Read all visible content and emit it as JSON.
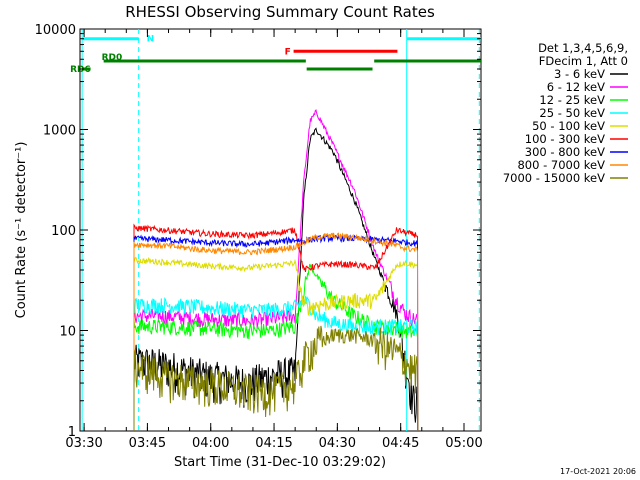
{
  "chart_data": {
    "type": "line",
    "title": "RHESSI Observing Summary Count Rates",
    "xlabel": "Start Time (31-Dec-10 03:29:02)",
    "ylabel": "Count Rate (s⁻¹ detector⁻¹)",
    "ylog": true,
    "ylim": [
      1,
      10000
    ],
    "xlim_minutes": [
      0,
      95
    ],
    "y_ticks": [
      {
        "value": 10000,
        "label": "10000"
      },
      {
        "value": 1000,
        "label": "1000"
      },
      {
        "value": 100,
        "label": "100"
      },
      {
        "value": 10,
        "label": "10"
      },
      {
        "value": 1,
        "label": "1"
      }
    ],
    "x_ticks": [
      {
        "t": 0.97,
        "label": "03:30"
      },
      {
        "t": 15.97,
        "label": "03:45"
      },
      {
        "t": 30.97,
        "label": "04:00"
      },
      {
        "t": 45.97,
        "label": "04:15"
      },
      {
        "t": 60.97,
        "label": "04:30"
      },
      {
        "t": 75.97,
        "label": "04:45"
      },
      {
        "t": 90.97,
        "label": "05:00"
      }
    ],
    "legend": {
      "header": [
        "Det 1,3,4,5,6,9,",
        "FDecim 1, Att 0"
      ],
      "placement": "right"
    },
    "data_gap": {
      "start": 12.8,
      "end": 80.0
    },
    "series": [
      {
        "name": "3 - 6 keV",
        "color": "#000000",
        "t": [
          13,
          20,
          30,
          40,
          45,
          51,
          53,
          54.5,
          56,
          60,
          65,
          70,
          75,
          77,
          79
        ],
        "values": [
          5,
          4.5,
          3.5,
          3,
          3.5,
          3.8,
          200,
          800,
          1000,
          600,
          200,
          50,
          15,
          5,
          2
        ]
      },
      {
        "name": "6 - 12 keV",
        "color": "#ff00ff",
        "t": [
          13,
          20,
          30,
          40,
          45,
          51,
          53,
          54.5,
          56,
          60,
          65,
          70,
          75,
          77,
          79
        ],
        "values": [
          14,
          14,
          13,
          12.5,
          13,
          14,
          300,
          1200,
          1500,
          700,
          250,
          60,
          20,
          15,
          13
        ]
      },
      {
        "name": "12 - 25 keV",
        "color": "#00ff00",
        "t": [
          13,
          20,
          30,
          40,
          45,
          51,
          53,
          54.5,
          56,
          60,
          65,
          70,
          75,
          77,
          79
        ],
        "values": [
          11,
          11,
          10.5,
          10,
          10,
          11,
          25,
          45,
          35,
          20,
          14,
          11,
          10.5,
          10,
          9.5
        ]
      },
      {
        "name": "25 - 50 keV",
        "color": "#00ffff",
        "t": [
          13,
          20,
          30,
          40,
          45,
          51,
          53,
          54.5,
          56,
          60,
          65,
          70,
          75,
          77,
          79
        ],
        "values": [
          18,
          18,
          17,
          16,
          16,
          17,
          20,
          18,
          14,
          12,
          11,
          11,
          11,
          11,
          11
        ]
      },
      {
        "name": "50 - 100 keV",
        "color": "#dddd00",
        "t": [
          13,
          20,
          30,
          40,
          45,
          51,
          53,
          54.5,
          56,
          60,
          65,
          70,
          75,
          77,
          79
        ],
        "values": [
          50,
          48,
          44,
          42,
          44,
          47,
          18,
          17,
          18,
          19,
          20,
          20,
          45,
          47,
          45
        ]
      },
      {
        "name": "100 - 300 keV",
        "color": "#ff0000",
        "t": [
          13,
          20,
          30,
          40,
          45,
          51,
          53,
          54.5,
          56,
          60,
          65,
          70,
          75,
          77,
          79
        ],
        "values": [
          105,
          100,
          92,
          88,
          92,
          100,
          40,
          42,
          44,
          46,
          45,
          42,
          100,
          95,
          90
        ]
      },
      {
        "name": "300 - 800 keV",
        "color": "#0000ff",
        "t": [
          13,
          20,
          30,
          40,
          45,
          51,
          53,
          54.5,
          56,
          60,
          65,
          70,
          75,
          77,
          79
        ],
        "values": [
          82,
          80,
          75,
          72,
          75,
          80,
          78,
          80,
          82,
          83,
          82,
          80,
          78,
          76,
          74
        ]
      },
      {
        "name": "800 - 7000 keV",
        "color": "#ff8800",
        "t": [
          13,
          20,
          30,
          40,
          45,
          51,
          53,
          54.5,
          56,
          60,
          65,
          70,
          75,
          77,
          79
        ],
        "values": [
          72,
          70,
          63,
          60,
          63,
          68,
          75,
          80,
          85,
          88,
          85,
          78,
          70,
          66,
          64
        ]
      },
      {
        "name": "7000 - 15000 keV",
        "color": "#808000",
        "t": [
          13,
          20,
          30,
          40,
          45,
          51,
          53,
          54.5,
          56,
          60,
          65,
          70,
          75,
          77,
          79
        ],
        "values": [
          4.5,
          3.5,
          3,
          2.5,
          2.5,
          3,
          5,
          6.5,
          7.5,
          9,
          9,
          8,
          6,
          5,
          4
        ]
      }
    ],
    "flags": [
      {
        "label": "N",
        "color": "#00ffff",
        "y_level": 8000,
        "segments": [
          [
            0.5,
            13.9
          ],
          [
            77.4,
            95
          ]
        ]
      },
      {
        "label": "F",
        "color": "#ff0000",
        "y_level": 6000,
        "segments": [
          [
            50.6,
            75.2
          ]
        ]
      },
      {
        "label": "RD0",
        "color": "#008000",
        "y_level": 4800,
        "segments": [
          [
            5.6,
            53.5
          ],
          [
            69.7,
            95
          ]
        ]
      },
      {
        "label": "",
        "color": "#008000",
        "y_level": 4000,
        "segments": [
          [
            53.7,
            69.3
          ]
        ]
      },
      {
        "label": "RD6",
        "color": "#008000",
        "y_level": 4000,
        "segments": [
          [
            0.5,
            2.5
          ]
        ]
      }
    ],
    "vlines": [
      {
        "t": 0.5,
        "color": "#00ffff",
        "style": "solid"
      },
      {
        "t": 13.9,
        "color": "#00ffff",
        "style": "dashed"
      },
      {
        "t": 77.4,
        "color": "#00ffff",
        "style": "solid"
      },
      {
        "t": 94.6,
        "color": "#00ffff",
        "style": "dashed"
      }
    ]
  },
  "footer_stamp": "17-Oct-2021 20:06"
}
